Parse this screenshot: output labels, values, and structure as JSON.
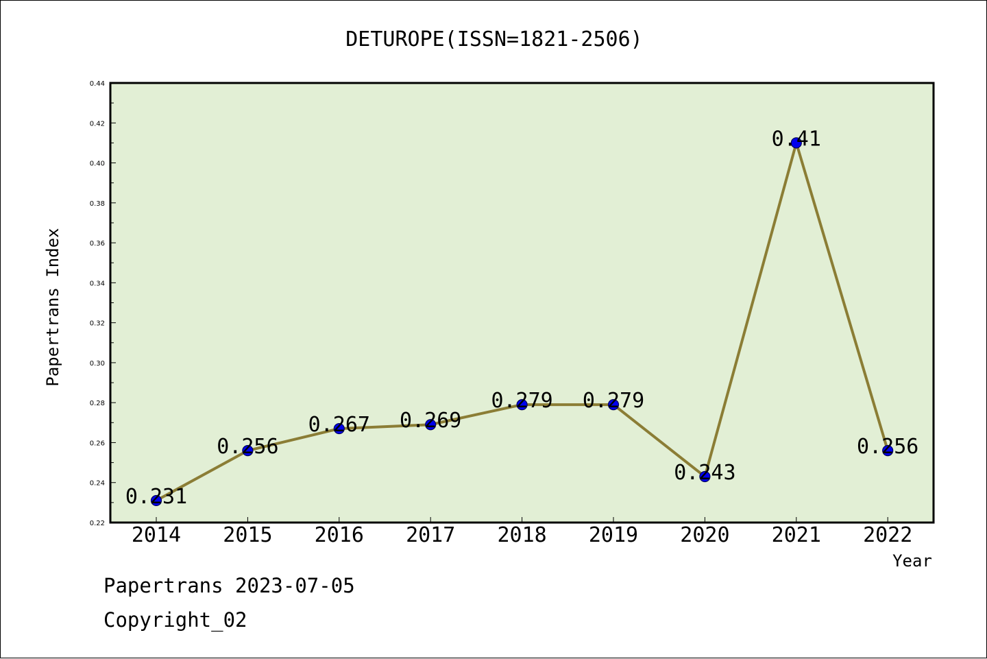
{
  "chart_data": {
    "type": "line",
    "title": "DETUROPE(ISSN=1821-2506)",
    "xlabel": "Year",
    "ylabel": "Papertrans Index",
    "categories": [
      "2014",
      "2015",
      "2016",
      "2017",
      "2018",
      "2019",
      "2020",
      "2021",
      "2022"
    ],
    "values": [
      0.231,
      0.256,
      0.267,
      0.269,
      0.279,
      0.279,
      0.243,
      0.41,
      0.256
    ],
    "data_labels": [
      "0.231",
      "0.256",
      "0.267",
      "0.269",
      "0.279",
      "0.279",
      "0.243",
      "0.41",
      "0.256"
    ],
    "ylim": [
      0.22,
      0.44
    ],
    "yticks": [
      "0.22",
      "0.24",
      "0.26",
      "0.28",
      "0.30",
      "0.32",
      "0.34",
      "0.36",
      "0.38",
      "0.40",
      "0.42",
      "0.44"
    ],
    "grid": false,
    "legend": "none",
    "colors": {
      "plot_background": "#e2efd5",
      "line": "#8b7d35",
      "marker": "#0000ee",
      "marker_edge": "#00005a"
    }
  },
  "footer": {
    "line1": "Papertrans 2023-07-05",
    "line2": "Copyright_02"
  }
}
